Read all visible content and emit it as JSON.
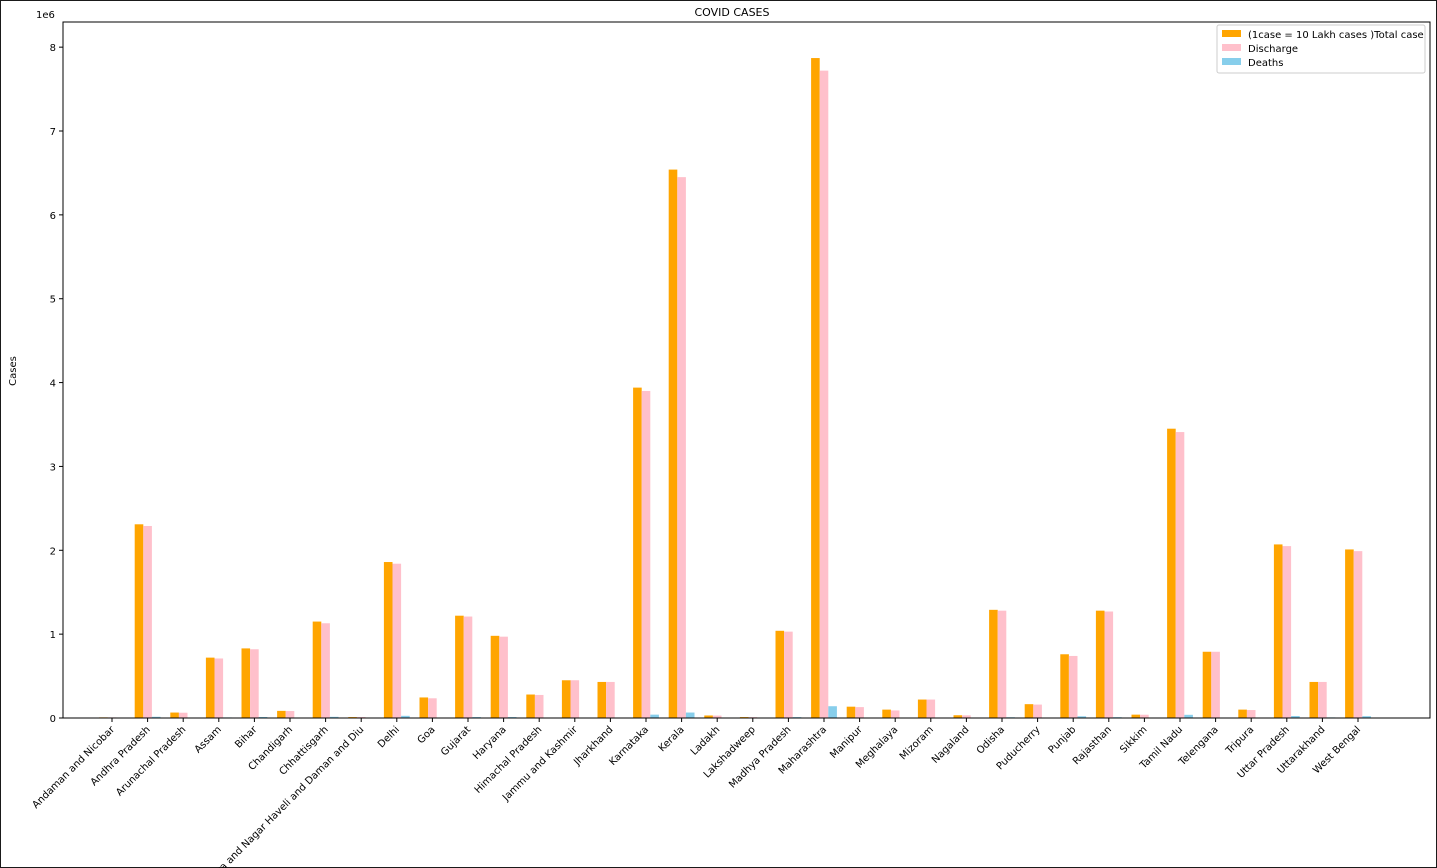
{
  "chart_data": {
    "type": "bar",
    "title": "COVID CASES",
    "xlabel": "",
    "ylabel": "Cases",
    "y_offset_label": "1e6",
    "ylim": [
      0,
      8.3
    ],
    "y_ticks": [
      0,
      1,
      2,
      3,
      4,
      5,
      6,
      7,
      8
    ],
    "grid": false,
    "legend_position": "top-right",
    "categories": [
      "Andaman and Nicobar",
      "Andhra Pradesh",
      "Arunachal Pradesh",
      "Assam",
      "Bihar",
      "Chandigarh",
      "Chhattisgarh",
      "Dadra and Nagar Haveli and Daman and Diu",
      "Delhi",
      "Goa",
      "Gujarat",
      "Haryana",
      "Himachal Pradesh",
      "Jammu and Kashmir",
      "Jharkhand",
      "Karnataka",
      "Kerala",
      "Ladakh",
      "Lakshadweep",
      "Madhya Pradesh",
      "Maharashtra",
      "Manipur",
      "Meghalaya",
      "Mizoram",
      "Nagaland",
      "Odisha",
      "Puducherry",
      "Punjab",
      "Rajasthan",
      "Sikkim",
      "Tamil Nadu",
      "Telengana",
      "Tripura",
      "Uttar Pradesh",
      "Uttarakhand",
      "West Bengal"
    ],
    "series": [
      {
        "name": "(1case = 10 Lakh cases )Total case",
        "color": "#ffa500",
        "values": [
          0.0076,
          2.31,
          0.065,
          0.72,
          0.83,
          0.085,
          1.15,
          0.011,
          1.86,
          0.245,
          1.22,
          0.98,
          0.28,
          0.45,
          0.43,
          3.94,
          6.54,
          0.03,
          0.011,
          1.04,
          7.87,
          0.135,
          0.1,
          0.22,
          0.033,
          1.29,
          0.165,
          0.76,
          1.28,
          0.04,
          3.45,
          0.79,
          0.1,
          2.07,
          0.43,
          2.01
        ]
      },
      {
        "name": "Discharge",
        "color": "#ffc0cb",
        "values": [
          0.0074,
          2.29,
          0.063,
          0.71,
          0.82,
          0.083,
          1.13,
          0.011,
          1.84,
          0.235,
          1.21,
          0.97,
          0.275,
          0.45,
          0.43,
          3.9,
          6.45,
          0.029,
          0.01,
          1.03,
          7.72,
          0.13,
          0.09,
          0.22,
          0.032,
          1.28,
          0.16,
          0.74,
          1.27,
          0.039,
          3.41,
          0.79,
          0.095,
          2.05,
          0.43,
          1.99
        ]
      },
      {
        "name": "Deaths",
        "color": "#87ceeb",
        "values": [
          0.0001,
          0.0145,
          0.0003,
          0.007,
          0.012,
          0.0011,
          0.014,
          0.0,
          0.026,
          0.0038,
          0.011,
          0.011,
          0.004,
          0.0048,
          0.0053,
          0.04,
          0.065,
          0.0002,
          0.0001,
          0.0105,
          0.1405,
          0.002,
          0.0016,
          0.0007,
          0.0007,
          0.009,
          0.0019,
          0.0204,
          0.0096,
          0.0005,
          0.0381,
          0.0041,
          0.0009,
          0.0235,
          0.0074,
          0.0215
        ]
      }
    ]
  }
}
